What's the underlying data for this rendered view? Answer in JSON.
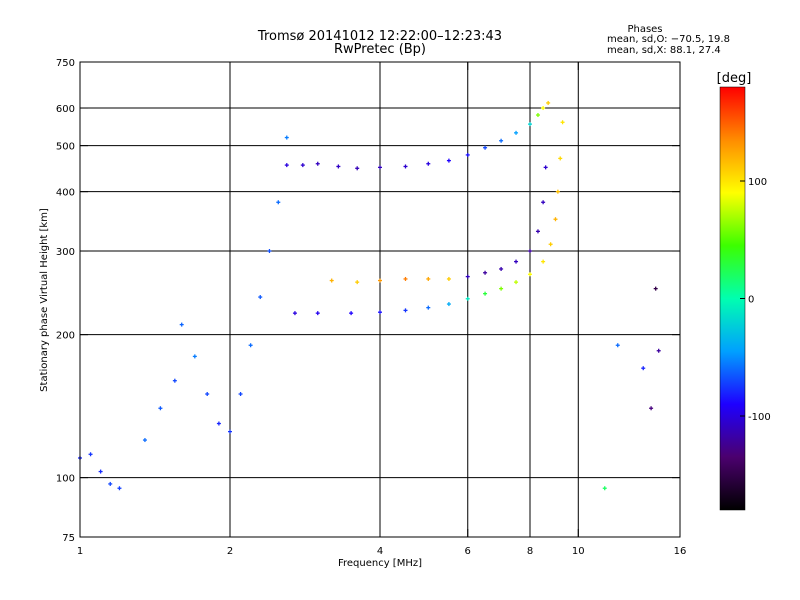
{
  "chart_data": {
    "type": "scatter",
    "title": "Tromsø 20141012 12:22:00–12:23:43",
    "subtitle": "RwPretec (Bp)",
    "stats": {
      "heading": "Phases",
      "line_o": "mean, sd,O: −70.5, 19.8",
      "line_x": "mean, sd,X:  88.1, 27.4"
    },
    "xlabel": "Frequency [MHz]",
    "ylabel": "Stationary phase Virtual Height [km]",
    "x_scale": "log",
    "y_scale": "log",
    "xlim": [
      1,
      16
    ],
    "ylim": [
      75,
      750
    ],
    "x_ticks": [
      {
        "value": 1,
        "label": "1"
      },
      {
        "value": 2,
        "label": "2"
      },
      {
        "value": 4,
        "label": "4"
      },
      {
        "value": 6,
        "label": "6"
      },
      {
        "value": 8,
        "label": "8"
      },
      {
        "value": 10,
        "label": "10"
      },
      {
        "value": 16,
        "label": "16"
      }
    ],
    "y_ticks": [
      {
        "value": 75,
        "label": "75"
      },
      {
        "value": 100,
        "label": "100"
      },
      {
        "value": 200,
        "label": "200"
      },
      {
        "value": 300,
        "label": "300"
      },
      {
        "value": 400,
        "label": "400"
      },
      {
        "value": 500,
        "label": "500"
      },
      {
        "value": 600,
        "label": "600"
      },
      {
        "value": 750,
        "label": "750"
      }
    ],
    "major_grid_x": [
      2,
      4,
      6,
      8,
      10
    ],
    "major_grid_y": [
      100,
      200,
      300,
      400,
      500,
      600
    ],
    "grid": true,
    "colorbar": {
      "label": "[deg]",
      "min": -180,
      "max": 180,
      "ticks": [
        {
          "value": 100,
          "label": "100"
        },
        {
          "value": 0,
          "label": "0"
        },
        {
          "value": -100,
          "label": "-100"
        }
      ],
      "colors": [
        "#000000",
        "#4b006e",
        "#1e00ff",
        "#00a0ff",
        "#00ffb0",
        "#3cff00",
        "#ffff00",
        "#ff8c00",
        "#ff0000"
      ]
    },
    "series": [
      {
        "x": [
          1.0,
          1.05,
          1.1,
          1.15,
          1.2,
          1.35,
          1.45,
          1.55,
          1.6,
          1.7,
          1.8,
          1.9,
          2.0,
          2.1,
          2.2,
          2.3,
          2.4,
          2.5,
          2.6
        ],
        "y": [
          110,
          112,
          103,
          97,
          95,
          120,
          140,
          160,
          210,
          180,
          150,
          130,
          125,
          150,
          190,
          240,
          300,
          380,
          520
        ],
        "phase": [
          -80,
          -75,
          -78,
          -70,
          -72,
          -60,
          -65,
          -70,
          -62,
          -55,
          -70,
          -80,
          -75,
          -70,
          -60,
          -65,
          -68,
          -60,
          -55
        ]
      },
      {
        "x": [
          2.6,
          2.8,
          3.0,
          3.3,
          3.6,
          4.0,
          4.5,
          5.0,
          5.5,
          6.0,
          6.5,
          7.0,
          7.5,
          8.0,
          8.3,
          8.5,
          8.7
        ],
        "y": [
          455,
          455,
          458,
          452,
          448,
          450,
          452,
          458,
          465,
          478,
          495,
          512,
          532,
          555,
          580,
          600,
          615
        ],
        "phase": [
          -100,
          -105,
          -110,
          -108,
          -112,
          -110,
          -105,
          -100,
          -90,
          -85,
          -70,
          -60,
          -45,
          -20,
          60,
          90,
          110
        ]
      },
      {
        "x": [
          2.7,
          3.0,
          3.5,
          4.0,
          4.5,
          5.0,
          5.5,
          6.0,
          6.5,
          7.0,
          7.5,
          8.0,
          8.5,
          8.8,
          9.0,
          9.1,
          9.2,
          9.3
        ],
        "y": [
          222,
          222,
          222,
          223,
          225,
          228,
          232,
          238,
          244,
          250,
          258,
          268,
          285,
          310,
          350,
          400,
          470,
          560
        ],
        "phase": [
          -100,
          -95,
          -90,
          -85,
          -75,
          -60,
          -40,
          -10,
          30,
          60,
          75,
          90,
          100,
          110,
          120,
          115,
          105,
          100
        ]
      },
      {
        "x": [
          3.2,
          3.6,
          4.0,
          4.5,
          5.0,
          5.5,
          6.0,
          6.5,
          7.0,
          7.5,
          8.0,
          8.3,
          8.5,
          8.6
        ],
        "y": [
          260,
          258,
          260,
          262,
          262,
          262,
          265,
          270,
          275,
          285,
          300,
          330,
          380,
          450
        ],
        "phase": [
          120,
          110,
          130,
          140,
          125,
          110,
          -110,
          -120,
          -115,
          -110,
          -120,
          -115,
          -110,
          -105
        ]
      },
      {
        "x": [
          11.3,
          12.0,
          13.5,
          14.0,
          14.3,
          14.5
        ],
        "y": [
          95,
          190,
          170,
          140,
          250,
          185
        ],
        "phase": [
          20,
          -60,
          -80,
          -130,
          -150,
          -120
        ]
      }
    ]
  }
}
